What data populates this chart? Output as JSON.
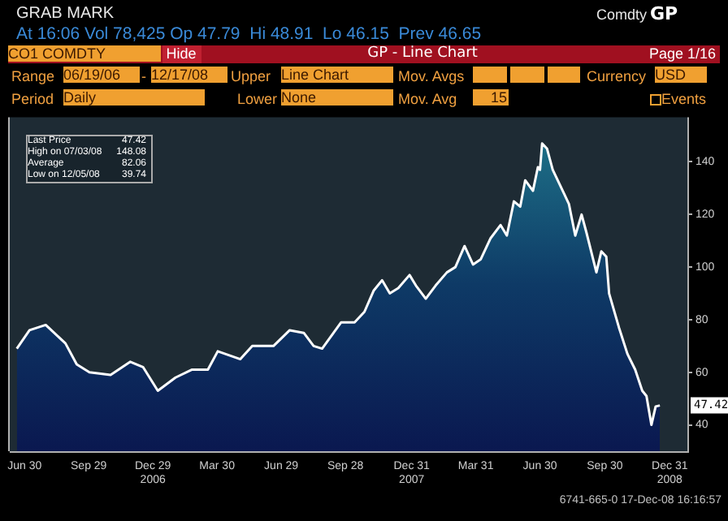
{
  "chart_data": {
    "type": "area",
    "title": "GP - Line Chart",
    "x": [
      "2006-06-19",
      "2006-07-07",
      "2006-07-30",
      "2006-08-27",
      "2006-09-12",
      "2006-09-30",
      "2006-10-30",
      "2006-11-27",
      "2006-12-15",
      "2007-01-05",
      "2007-01-30",
      "2007-02-22",
      "2007-03-17",
      "2007-03-31",
      "2007-05-02",
      "2007-05-19",
      "2007-06-18",
      "2007-07-11",
      "2007-07-31",
      "2007-08-14",
      "2007-08-26",
      "2007-09-22",
      "2007-10-11",
      "2007-10-25",
      "2007-11-07",
      "2007-11-19",
      "2007-11-30",
      "2007-12-12",
      "2007-12-28",
      "2008-01-06",
      "2008-01-20",
      "2008-02-03",
      "2008-02-19",
      "2008-03-02",
      "2008-03-15",
      "2008-03-27",
      "2008-04-07",
      "2008-04-21",
      "2008-05-05",
      "2008-05-14",
      "2008-05-24",
      "2008-06-02",
      "2008-06-09",
      "2008-06-20",
      "2008-06-27",
      "2008-06-30",
      "2008-07-03",
      "2008-07-10",
      "2008-07-18",
      "2008-08-03",
      "2008-08-10",
      "2008-08-19",
      "2008-08-28",
      "2008-09-04",
      "2008-09-18",
      "2008-09-25",
      "2008-10-02",
      "2008-10-06",
      "2008-10-20",
      "2008-11-01",
      "2008-11-12",
      "2008-11-22",
      "2008-11-28",
      "2008-12-05",
      "2008-12-11",
      "2008-12-17"
    ],
    "series": [
      {
        "color": "#ffffff",
        "values": [
          69,
          76,
          78,
          71,
          63,
          60,
          59,
          64,
          62,
          53,
          58,
          61,
          61,
          68,
          65,
          70,
          70,
          76,
          75,
          70,
          69,
          79,
          79,
          83,
          91,
          95,
          90,
          92,
          97,
          93,
          88,
          93,
          98,
          100,
          108,
          101,
          103,
          111,
          116,
          112,
          125,
          123,
          133,
          129,
          138,
          137,
          147,
          145,
          137,
          128,
          124,
          112,
          120,
          113,
          98,
          106,
          104,
          90,
          77,
          67,
          61,
          53,
          51,
          40,
          47,
          47.4
        ]
      }
    ],
    "xlim": [
      "2006-06-09",
      "2009-01-25"
    ],
    "xticks": [
      {
        "value": "2006-06-30",
        "label": "Jun 30"
      },
      {
        "value": "2006-09-29",
        "label": "Sep 29"
      },
      {
        "value": "2006-12-29",
        "label": "Dec 29\n2006"
      },
      {
        "value": "2007-03-30",
        "label": "Mar 30"
      },
      {
        "value": "2007-06-29",
        "label": "Jun 29"
      },
      {
        "value": "2007-09-28",
        "label": "Sep 28"
      },
      {
        "value": "2007-12-31",
        "label": "Dec 31\n2007"
      },
      {
        "value": "2008-03-31",
        "label": "Mar 31"
      },
      {
        "value": "2008-06-30",
        "label": "Jun 30"
      },
      {
        "value": "2008-09-30",
        "label": "Sep 30"
      },
      {
        "value": "2008-12-31",
        "label": "Dec 31\n2008"
      }
    ],
    "ylim": [
      30,
      157
    ],
    "yticks": [
      40,
      60,
      80,
      100,
      120,
      140
    ],
    "grid": false,
    "legend": false,
    "annotations": [
      "GRAB MARK",
      "Comdty",
      "GP",
      "At 16:06 Vol 78,425 Op 47.79  Hi 48.91  Lo 46.15  Prev 46.65",
      "CO1 COMDTY",
      "Hide",
      "Page 1/16",
      "Range",
      "06/19/06",
      "-",
      "12/17/08",
      "Upper",
      "Line Chart",
      "Mov. Avgs",
      "Currency",
      "USD",
      "Period",
      "Daily",
      "Lower",
      "None",
      "Mov. Avg",
      "15",
      "Events",
      "Last Price",
      "47.42",
      "High on 07/03/08",
      "148.08",
      "Average",
      "82.06",
      "Low on 12/05/08",
      "39.74",
      {
        "text": "47.42",
        "x": "2008-12-17",
        "y": 47.42
      },
      "6741-665-0 17-Dec-08 16:16:57"
    ]
  }
}
